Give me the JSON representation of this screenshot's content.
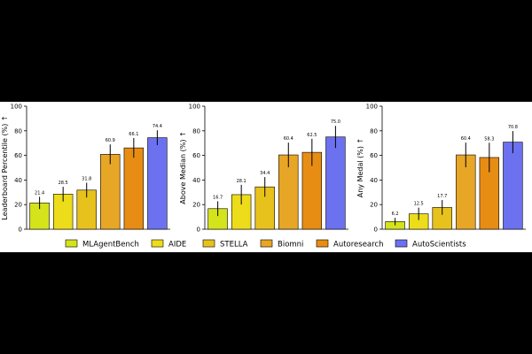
{
  "legend": [
    {
      "name": "MLAgentBench",
      "color": "#d4e31a"
    },
    {
      "name": "AIDE",
      "color": "#eddc1a"
    },
    {
      "name": "STELLA",
      "color": "#e8c21c"
    },
    {
      "name": "Biomni",
      "color": "#e8a626"
    },
    {
      "name": "Autoresearch",
      "color": "#e88d14"
    },
    {
      "name": "AutoScientists",
      "color": "#6c71f0"
    }
  ],
  "chart_data": [
    {
      "type": "bar",
      "ylabel": "Leaderboard Percentile (%) ↑",
      "ylim": [
        0,
        100
      ],
      "yticks": [
        0,
        20,
        40,
        60,
        80,
        100
      ],
      "categories": [
        "MLAgentBench",
        "AIDE",
        "STELLA",
        "Biomni",
        "Autoresearch",
        "AutoScientists"
      ],
      "values": [
        21.4,
        28.5,
        31.8,
        60.9,
        66.1,
        74.4
      ],
      "error": [
        5,
        6,
        6,
        8,
        8,
        6
      ],
      "labels": [
        "21.4",
        "28.5",
        "31.8",
        "60.9",
        "66.1",
        "74.4"
      ]
    },
    {
      "type": "bar",
      "ylabel": "Above Median (%) ↑",
      "ylim": [
        0,
        100
      ],
      "yticks": [
        0,
        20,
        40,
        60,
        80,
        100
      ],
      "categories": [
        "MLAgentBench",
        "AIDE",
        "STELLA",
        "Biomni",
        "Autoresearch",
        "AutoScientists"
      ],
      "values": [
        16.7,
        28.1,
        34.4,
        60.4,
        62.5,
        75.0
      ],
      "error": [
        6,
        8,
        8,
        10,
        11,
        9
      ],
      "labels": [
        "16.7",
        "28.1",
        "34.4",
        "60.4",
        "62.5",
        "75.0"
      ]
    },
    {
      "type": "bar",
      "ylabel": "Any Medal (%) ↑",
      "ylim": [
        0,
        100
      ],
      "yticks": [
        0,
        20,
        40,
        60,
        80,
        100
      ],
      "categories": [
        "MLAgentBench",
        "AIDE",
        "STELLA",
        "Biomni",
        "Autoresearch",
        "AutoScientists"
      ],
      "values": [
        6.2,
        12.5,
        17.7,
        60.4,
        58.3,
        70.8
      ],
      "error": [
        3,
        5,
        6,
        10,
        12,
        9
      ],
      "labels": [
        "6.2",
        "12.5",
        "17.7",
        "60.4",
        "58.3",
        "70.8"
      ]
    }
  ]
}
